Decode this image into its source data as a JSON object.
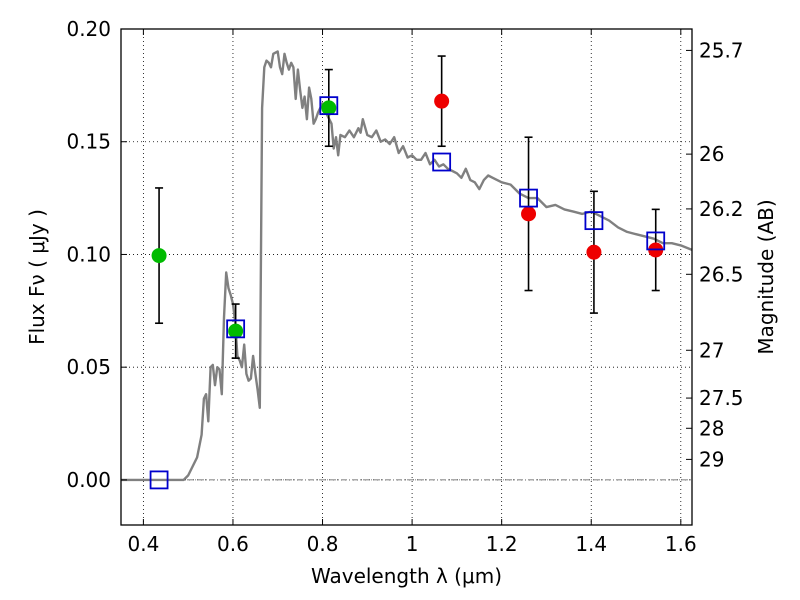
{
  "chart_data": {
    "type": "scatter",
    "xlabel": "Wavelength  λ (μm)",
    "ylabel": "Flux  F_ν  ( μJy )",
    "ylabel_right": "Magnitude (AB)",
    "xlim": [
      0.35,
      1.625
    ],
    "ylim": [
      -0.02,
      0.2
    ],
    "grid": true,
    "x_ticks": [
      0.4,
      0.6,
      0.8,
      1.0,
      1.2,
      1.4,
      1.6
    ],
    "x_tick_labels": [
      "0.4",
      "0.6",
      "0.8",
      "1",
      "1.2",
      "1.4",
      "1.6"
    ],
    "y_ticks": [
      0.0,
      0.05,
      0.1,
      0.15,
      0.2
    ],
    "y_tick_labels": [
      "0.00",
      "0.05",
      "0.10",
      "0.15",
      "0.20"
    ],
    "right_ticks": [
      {
        "label": "25.7",
        "flux": 0.1905
      },
      {
        "label": "26",
        "flux": 0.1445
      },
      {
        "label": "26.2",
        "flux": 0.1202
      },
      {
        "label": "26.5",
        "flux": 0.0912
      },
      {
        "label": "27",
        "flux": 0.0575
      },
      {
        "label": "27.5",
        "flux": 0.0363
      },
      {
        "label": "28",
        "flux": 0.0229
      },
      {
        "label": "29",
        "flux": 0.0091
      }
    ],
    "series": [
      {
        "kind": "line",
        "color": "#808080",
        "x": [
          0.35,
          0.49,
          0.5,
          0.52,
          0.53,
          0.535,
          0.54,
          0.545,
          0.55,
          0.555,
          0.56,
          0.565,
          0.57,
          0.575,
          0.58,
          0.585,
          0.59,
          0.595,
          0.6,
          0.605,
          0.61,
          0.615,
          0.62,
          0.625,
          0.63,
          0.635,
          0.64,
          0.645,
          0.65,
          0.655,
          0.66,
          0.665,
          0.67,
          0.675,
          0.68,
          0.685,
          0.69,
          0.7,
          0.705,
          0.71,
          0.715,
          0.72,
          0.725,
          0.73,
          0.735,
          0.74,
          0.745,
          0.75,
          0.755,
          0.76,
          0.765,
          0.77,
          0.775,
          0.78,
          0.785,
          0.79,
          0.8,
          0.81,
          0.82,
          0.825,
          0.83,
          0.835,
          0.84,
          0.85,
          0.86,
          0.87,
          0.88,
          0.885,
          0.89,
          0.9,
          0.91,
          0.92,
          0.93,
          0.94,
          0.95,
          0.96,
          0.97,
          0.98,
          0.99,
          1.0,
          1.01,
          1.02,
          1.03,
          1.04,
          1.05,
          1.06,
          1.07,
          1.08,
          1.09,
          1.1,
          1.11,
          1.12,
          1.13,
          1.14,
          1.15,
          1.16,
          1.17,
          1.18,
          1.2,
          1.22,
          1.24,
          1.26,
          1.28,
          1.3,
          1.32,
          1.34,
          1.36,
          1.38,
          1.4,
          1.42,
          1.44,
          1.46,
          1.48,
          1.5,
          1.52,
          1.54,
          1.56,
          1.58,
          1.6,
          1.625
        ],
        "y": [
          0.0,
          0.0,
          0.002,
          0.01,
          0.02,
          0.036,
          0.038,
          0.026,
          0.05,
          0.051,
          0.042,
          0.05,
          0.049,
          0.038,
          0.072,
          0.092,
          0.085,
          0.082,
          0.078,
          0.07,
          0.055,
          0.053,
          0.05,
          0.06,
          0.047,
          0.044,
          0.045,
          0.055,
          0.047,
          0.04,
          0.032,
          0.165,
          0.183,
          0.186,
          0.185,
          0.183,
          0.189,
          0.19,
          0.183,
          0.18,
          0.189,
          0.185,
          0.182,
          0.185,
          0.183,
          0.169,
          0.182,
          0.173,
          0.165,
          0.17,
          0.16,
          0.174,
          0.169,
          0.158,
          0.16,
          0.163,
          0.167,
          0.162,
          0.158,
          0.147,
          0.152,
          0.144,
          0.153,
          0.152,
          0.155,
          0.152,
          0.156,
          0.154,
          0.16,
          0.153,
          0.152,
          0.155,
          0.15,
          0.151,
          0.149,
          0.152,
          0.145,
          0.148,
          0.143,
          0.144,
          0.142,
          0.142,
          0.145,
          0.14,
          0.142,
          0.139,
          0.14,
          0.138,
          0.137,
          0.136,
          0.134,
          0.138,
          0.133,
          0.132,
          0.129,
          0.133,
          0.135,
          0.134,
          0.132,
          0.131,
          0.127,
          0.125,
          0.125,
          0.121,
          0.122,
          0.12,
          0.119,
          0.118,
          0.119,
          0.117,
          0.115,
          0.112,
          0.11,
          0.109,
          0.108,
          0.107,
          0.105,
          0.105,
          0.104,
          0.102
        ]
      },
      {
        "kind": "points",
        "marker": "circle",
        "color": "#00bb00",
        "x": [
          0.435,
          0.606,
          0.814
        ],
        "y": [
          0.0995,
          0.066,
          0.165
        ],
        "yerr": [
          0.03,
          0.012,
          0.017
        ]
      },
      {
        "kind": "points",
        "marker": "circle",
        "color": "#ee0000",
        "x": [
          1.066,
          1.26,
          1.406,
          1.544
        ],
        "y": [
          0.168,
          0.118,
          0.101,
          0.102
        ],
        "yerr": [
          0.02,
          0.034,
          0.027,
          0.018
        ]
      },
      {
        "kind": "points",
        "marker": "open-square",
        "color": "#0000cc",
        "x": [
          0.435,
          0.606,
          0.814,
          1.066,
          1.26,
          1.406,
          1.544
        ],
        "y": [
          0.0,
          0.067,
          0.166,
          0.141,
          0.125,
          0.115,
          0.106
        ]
      }
    ]
  }
}
